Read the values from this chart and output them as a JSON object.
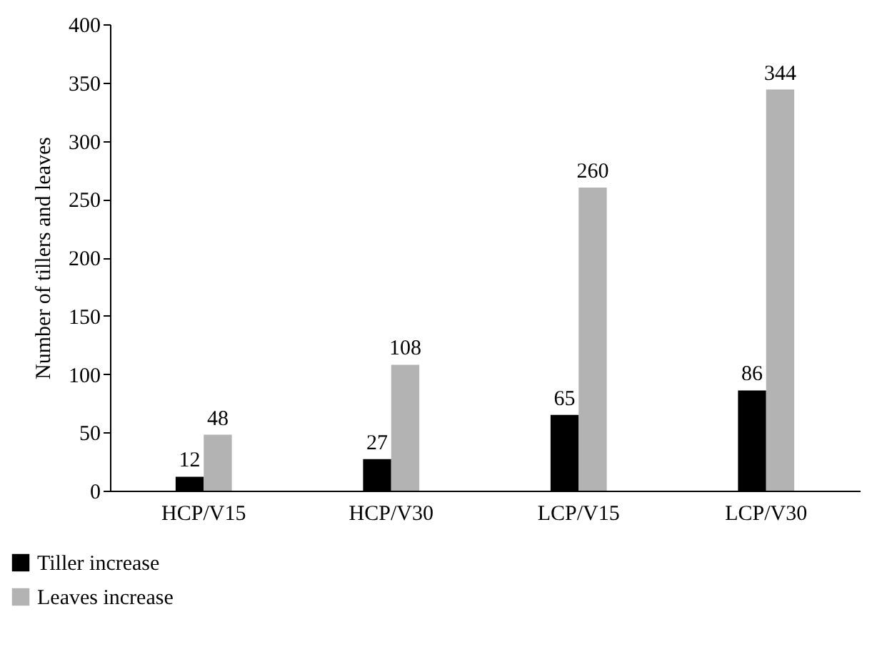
{
  "chart_data": {
    "type": "bar",
    "ylabel": "Number of tillers and leaves",
    "categories": [
      "HCP/V15",
      "HCP/V30",
      "LCP/V15",
      "LCP/V30"
    ],
    "series": [
      {
        "name": "Tiller increase",
        "color": "#000000",
        "values": [
          12,
          27,
          65,
          86
        ]
      },
      {
        "name": "Leaves increase",
        "color": "#b3b3b3",
        "values": [
          48,
          108,
          260,
          344
        ]
      }
    ],
    "ylim": [
      0,
      400
    ],
    "yticks": [
      0,
      50,
      100,
      150,
      200,
      250,
      300,
      350,
      400
    ],
    "data_labels": true,
    "legend": "bottom left"
  }
}
